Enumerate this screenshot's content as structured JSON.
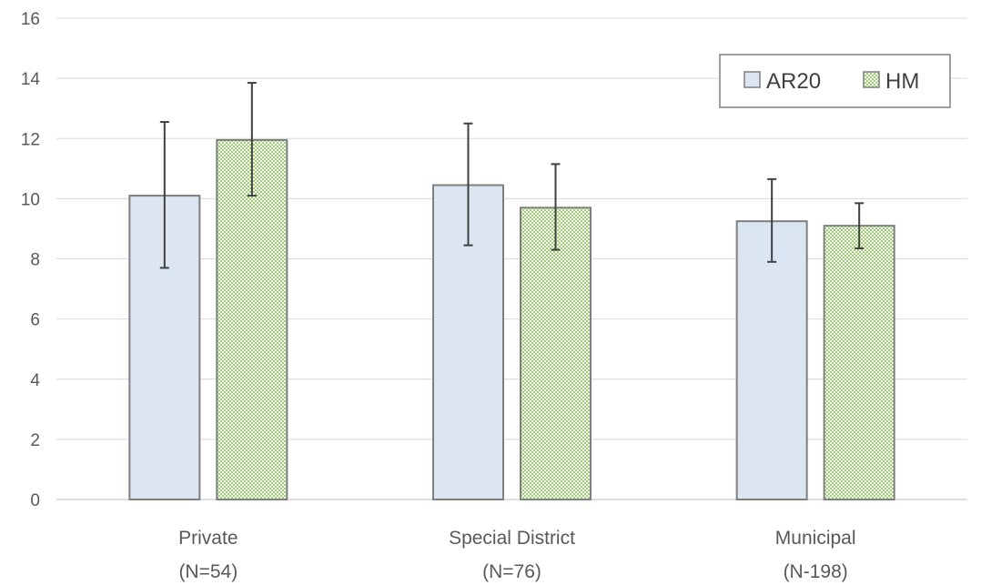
{
  "chart_data": {
    "type": "bar",
    "categories": [
      [
        "Private",
        "(N=54)"
      ],
      [
        "Special District",
        "(N=76)"
      ],
      [
        "Municipal",
        "(N-198)"
      ]
    ],
    "series": [
      {
        "name": "AR20",
        "values": [
          10.1,
          10.45,
          9.25
        ],
        "error_low": [
          7.7,
          8.45,
          7.9
        ],
        "error_high": [
          12.55,
          12.5,
          10.65
        ],
        "fill": "#dce6f2",
        "pattern": "solid"
      },
      {
        "name": "HM",
        "values": [
          11.95,
          9.7,
          9.1
        ],
        "error_low": [
          10.1,
          8.3,
          8.35
        ],
        "error_high": [
          13.85,
          11.15,
          9.85
        ],
        "fill": "#9bd06e",
        "pattern": "checker"
      }
    ],
    "ylim": [
      0,
      16
    ],
    "yticks": [
      0,
      2,
      4,
      6,
      8,
      10,
      12,
      14,
      16
    ],
    "grid": true,
    "legend_position": "top-right",
    "colors": {
      "bar_border": "#7f7f7f",
      "grid": "#d9d9d9",
      "error_bar": "#404040",
      "text": "#595959"
    }
  }
}
